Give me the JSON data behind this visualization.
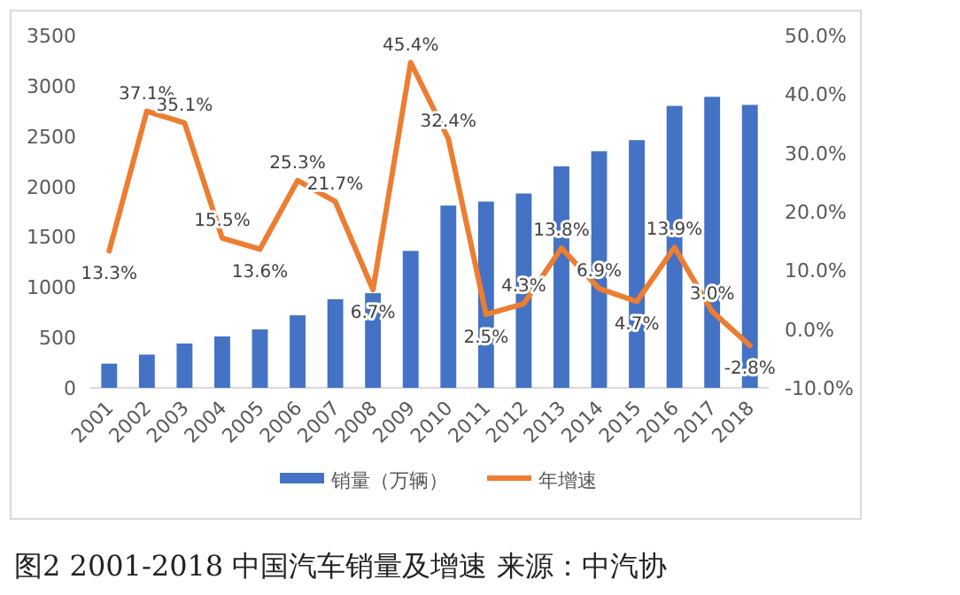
{
  "chart_data": {
    "type": "bar",
    "categories": [
      "2001",
      "2002",
      "2003",
      "2004",
      "2005",
      "2006",
      "2007",
      "2008",
      "2009",
      "2010",
      "2011",
      "2012",
      "2013",
      "2014",
      "2015",
      "2016",
      "2017",
      "2018"
    ],
    "series": [
      {
        "name": "销量（万辆）",
        "color": "#4472c4",
        "values": [
          240,
          330,
          440,
          510,
          580,
          720,
          880,
          940,
          1360,
          1810,
          1850,
          1930,
          2200,
          2350,
          2460,
          2800,
          2890,
          2810
        ]
      },
      {
        "name": "年增速",
        "type": "line",
        "axis": "y2",
        "color": "#ed7d31",
        "marker": "none",
        "values": [
          13.3,
          37.1,
          35.1,
          15.5,
          13.6,
          25.3,
          21.7,
          6.7,
          45.4,
          32.4,
          2.5,
          4.3,
          13.8,
          6.9,
          4.7,
          13.9,
          3.0,
          -2.8
        ],
        "value_labels": [
          "13.3%",
          "37.1%",
          "35.1%",
          "15.5%",
          "13.6%",
          "25.3%",
          "21.7%",
          "6.7%",
          "45.4%",
          "32.4%",
          "2.5%",
          "4.3%",
          "13.8%",
          "6.9%",
          "4.7%",
          "13.9%",
          "3.0%",
          "-2.8%"
        ]
      }
    ],
    "ylim": [
      0,
      3500
    ],
    "yticks": [
      0,
      500,
      1000,
      1500,
      2000,
      2500,
      3000,
      3500
    ],
    "y2lim": [
      -10,
      50
    ],
    "y2ticks": [
      {
        "value": -10,
        "label": "-10.0%"
      },
      {
        "value": 0,
        "label": "0.0%"
      },
      {
        "value": 10,
        "label": "10.0%"
      },
      {
        "value": 20,
        "label": "20.0%"
      },
      {
        "value": 30,
        "label": "30.0%"
      },
      {
        "value": 40,
        "label": "40.0%"
      },
      {
        "value": 50,
        "label": "50.0%"
      }
    ],
    "grid": false,
    "legend": "bottom",
    "annotations": [
      "图2 2001-2018 中国汽车销量及增速 来源：中汽协"
    ]
  }
}
